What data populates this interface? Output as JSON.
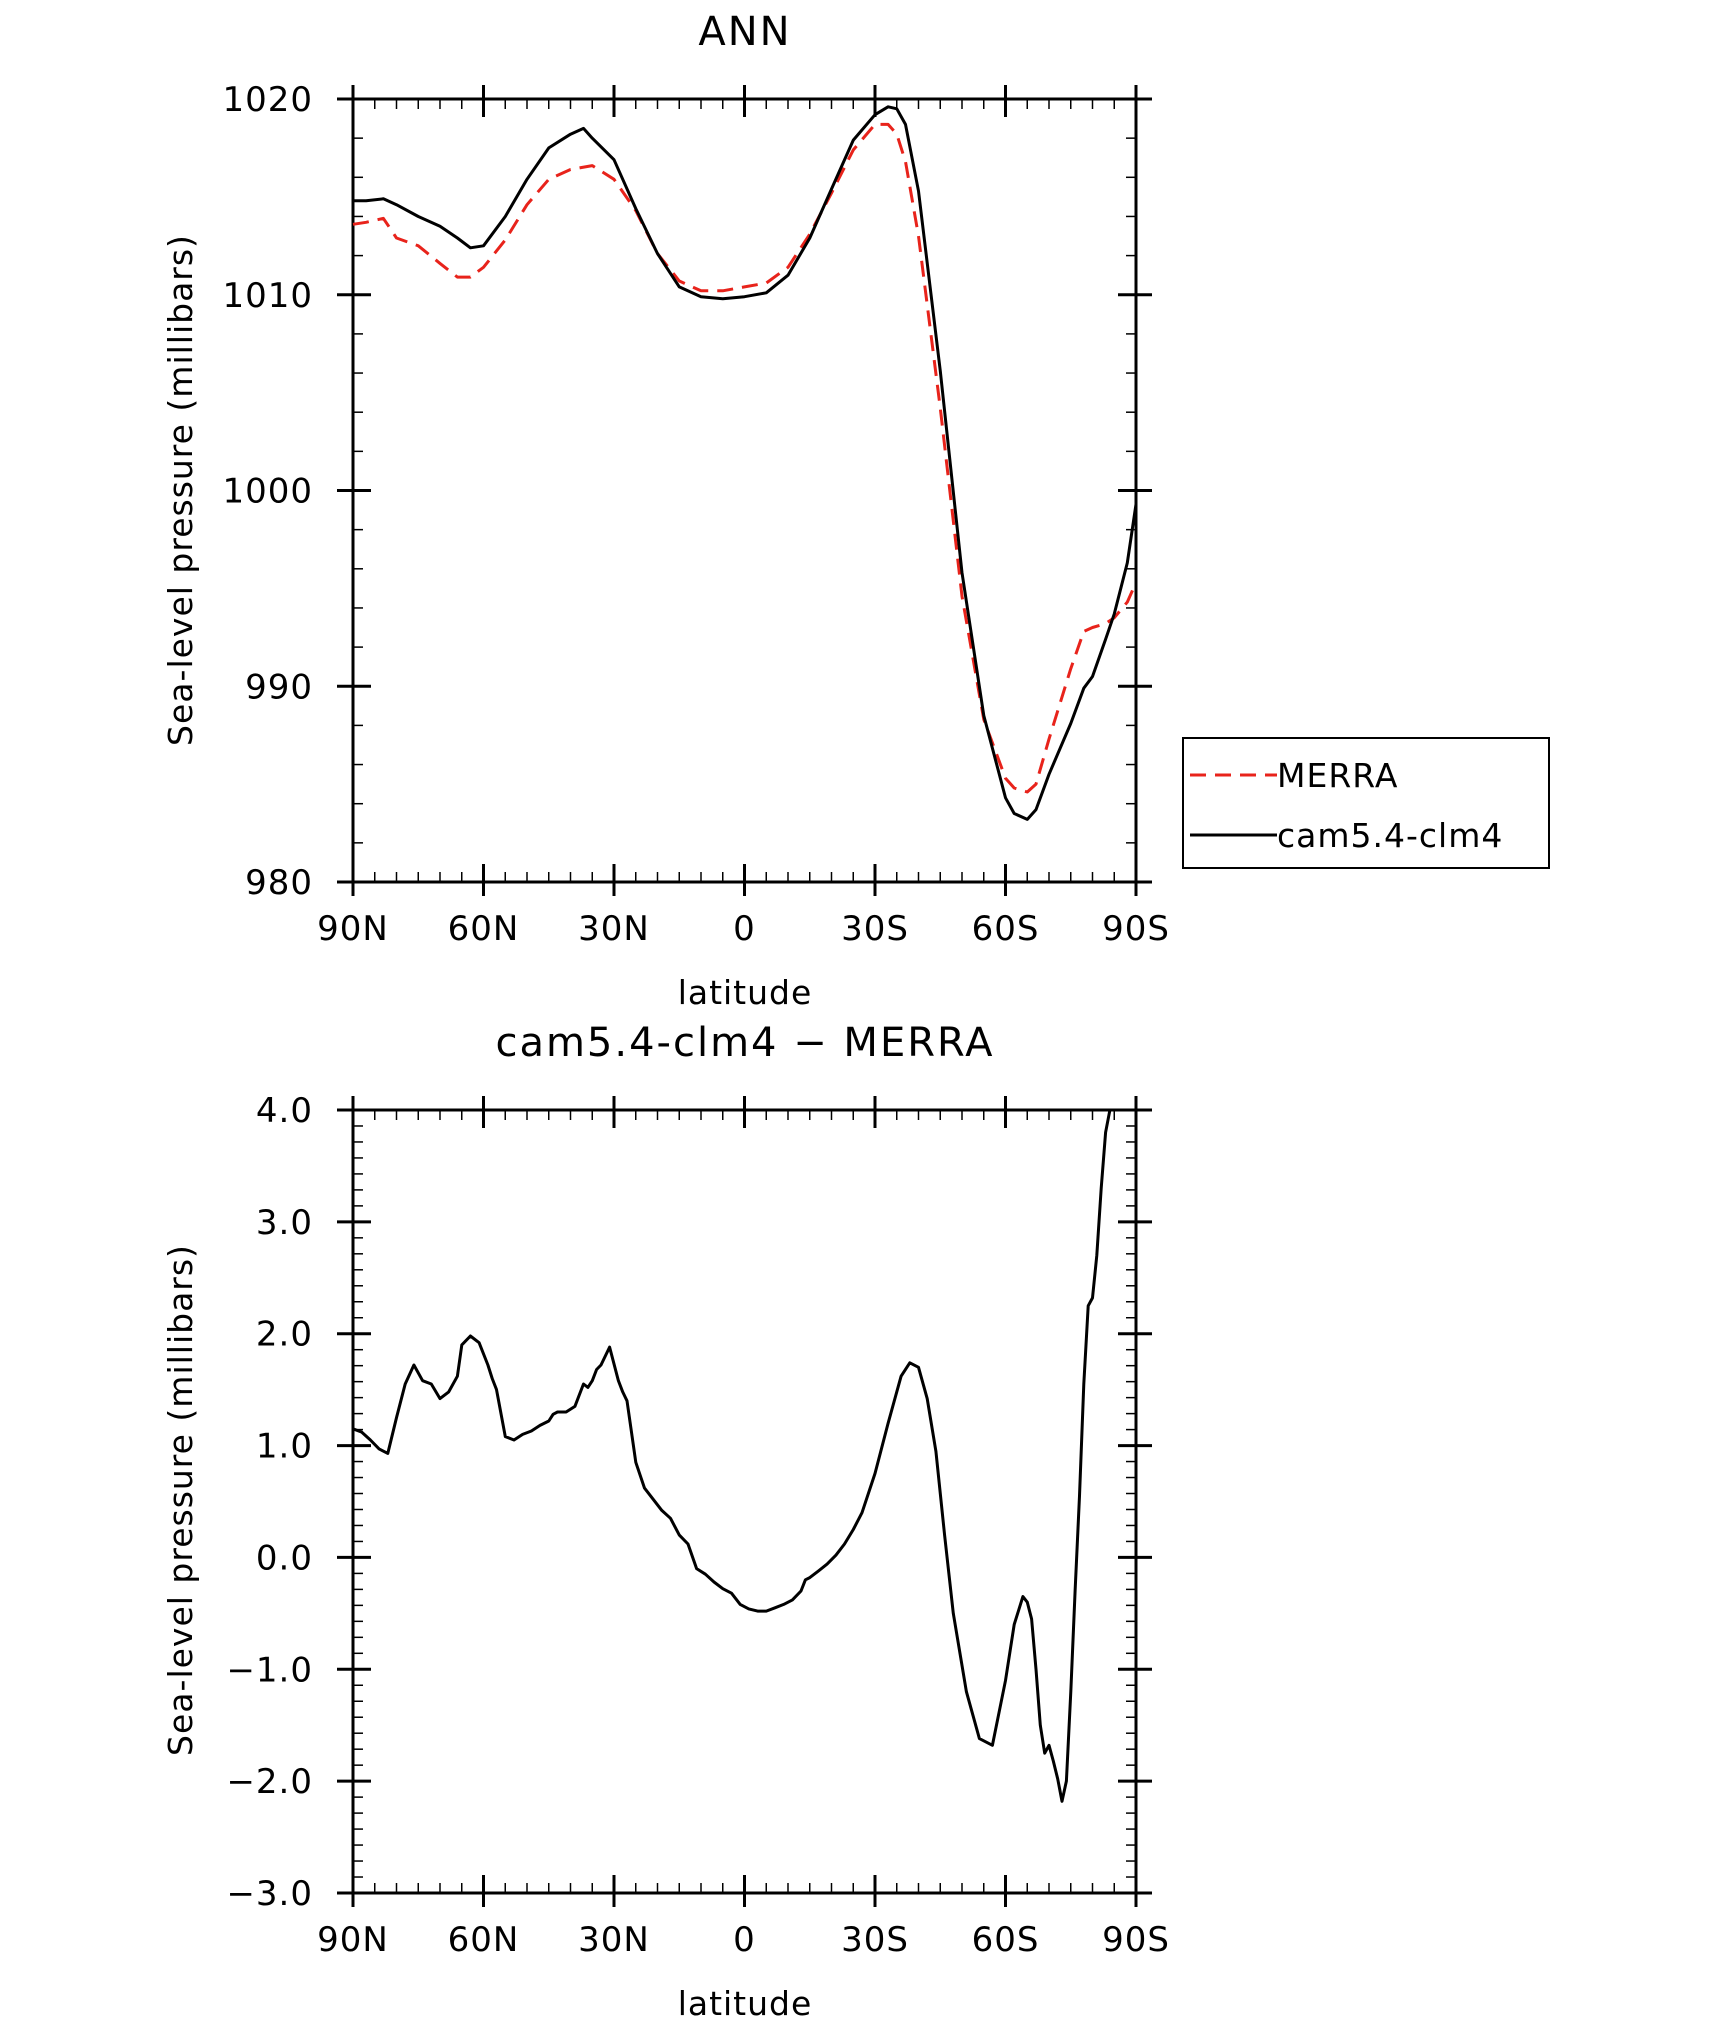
{
  "chart_data": [
    {
      "type": "line",
      "title": "ANN",
      "xlabel": "latitude",
      "ylabel": "Sea-level pressure (millibars)",
      "x_ticks": [
        {
          "value": 90,
          "label": "90N"
        },
        {
          "value": 60,
          "label": "60N"
        },
        {
          "value": 30,
          "label": "30N"
        },
        {
          "value": 0,
          "label": "0"
        },
        {
          "value": -30,
          "label": "30S"
        },
        {
          "value": -60,
          "label": "60S"
        },
        {
          "value": -90,
          "label": "90S"
        }
      ],
      "xlim": [
        90,
        -90
      ],
      "ylim": [
        980,
        1020
      ],
      "y_ticks": [
        {
          "value": 1020,
          "label": "1020"
        },
        {
          "value": 1010,
          "label": "1010"
        },
        {
          "value": 1000,
          "label": "1000"
        },
        {
          "value": 990,
          "label": "990"
        },
        {
          "value": 980,
          "label": "980"
        }
      ],
      "grid": false,
      "legend": {
        "placement": "right",
        "entries": [
          {
            "label": "MERRA",
            "series": "MERRA"
          },
          {
            "label": "cam5.4-clm4",
            "series": "cam5.4-clm4"
          }
        ]
      },
      "series": [
        {
          "name": "MERRA",
          "color": "#e8231b",
          "dash": "dashed",
          "x": [
            90,
            87,
            83,
            80,
            75,
            70,
            66,
            63,
            60,
            55,
            50,
            45,
            40,
            35,
            30,
            25,
            20,
            15,
            10,
            5,
            0,
            -5,
            -10,
            -15,
            -20,
            -25,
            -30,
            -33,
            -35,
            -37,
            -40,
            -45,
            -50,
            -55,
            -60,
            -62,
            -65,
            -67,
            -70,
            -75,
            -78,
            -80,
            -83,
            -85,
            -88,
            -90
          ],
          "y": [
            1013.6,
            1013.7,
            1013.9,
            1012.9,
            1012.5,
            1011.6,
            1010.9,
            1010.9,
            1011.4,
            1012.8,
            1014.6,
            1015.9,
            1016.4,
            1016.6,
            1015.9,
            1014.3,
            1012.1,
            1010.7,
            1010.2,
            1010.2,
            1010.4,
            1010.6,
            1011.4,
            1013.1,
            1015.2,
            1017.4,
            1018.7,
            1018.7,
            1018.2,
            1016.8,
            1013.0,
            1004.2,
            994.6,
            988.3,
            985.3,
            984.8,
            984.6,
            985.0,
            987.3,
            990.9,
            992.8,
            993.0,
            993.2,
            993.5,
            994.3,
            995.3
          ]
        },
        {
          "name": "cam5.4-clm4",
          "color": "#000000",
          "dash": "solid",
          "x": [
            90,
            87,
            83,
            80,
            75,
            70,
            66,
            63,
            60,
            55,
            50,
            45,
            40,
            37,
            35,
            30,
            25,
            20,
            15,
            10,
            5,
            0,
            -5,
            -10,
            -15,
            -20,
            -25,
            -30,
            -33,
            -35,
            -37,
            -40,
            -45,
            -50,
            -55,
            -60,
            -62,
            -65,
            -67,
            -70,
            -75,
            -78,
            -80,
            -83,
            -85,
            -88,
            -90
          ],
          "y": [
            1014.8,
            1014.8,
            1014.9,
            1014.6,
            1014.0,
            1013.5,
            1012.9,
            1012.4,
            1012.5,
            1014.0,
            1015.9,
            1017.5,
            1018.2,
            1018.5,
            1018.0,
            1016.9,
            1014.4,
            1012.1,
            1010.4,
            1009.9,
            1009.8,
            1009.9,
            1010.1,
            1011.0,
            1012.9,
            1015.4,
            1017.9,
            1019.2,
            1019.6,
            1019.5,
            1018.7,
            1015.3,
            1006.1,
            995.8,
            988.5,
            984.3,
            983.5,
            983.2,
            983.7,
            985.5,
            988.1,
            989.9,
            990.5,
            992.4,
            993.7,
            996.3,
            999.3
          ]
        }
      ]
    },
    {
      "type": "line",
      "title": "cam5.4-clm4 − MERRA",
      "xlabel": "latitude",
      "ylabel": "Sea-level pressure (millibars)",
      "x_ticks": [
        {
          "value": 90,
          "label": "90N"
        },
        {
          "value": 60,
          "label": "60N"
        },
        {
          "value": 30,
          "label": "30N"
        },
        {
          "value": 0,
          "label": "0"
        },
        {
          "value": -30,
          "label": "30S"
        },
        {
          "value": -60,
          "label": "60S"
        },
        {
          "value": -90,
          "label": "90S"
        }
      ],
      "xlim": [
        90,
        -90
      ],
      "ylim": [
        -3.0,
        4.0
      ],
      "y_ticks": [
        {
          "value": 4.0,
          "label": "4.0"
        },
        {
          "value": 3.0,
          "label": "3.0"
        },
        {
          "value": 2.0,
          "label": "2.0"
        },
        {
          "value": 1.0,
          "label": "1.0"
        },
        {
          "value": 0.0,
          "label": "0.0"
        },
        {
          "value": -1.0,
          "label": "−1.0"
        },
        {
          "value": -2.0,
          "label": "−2.0"
        },
        {
          "value": -3.0,
          "label": "−3.0"
        }
      ],
      "grid": false,
      "series": [
        {
          "name": "cam5.4-clm4 − MERRA",
          "color": "#000000",
          "dash": "solid",
          "x": [
            90,
            88,
            86,
            84,
            82,
            80,
            78,
            76,
            74,
            72,
            70,
            68,
            66,
            65,
            63,
            61,
            59,
            58,
            57,
            55,
            53,
            51,
            49,
            47,
            45,
            44,
            43,
            41,
            39,
            37,
            36,
            35,
            34,
            33,
            31,
            29,
            28,
            27,
            25,
            23,
            21,
            19,
            17,
            15,
            13,
            11,
            9,
            7,
            5,
            3,
            1,
            -1,
            -3,
            -5,
            -7,
            -9,
            -11,
            -13,
            -14,
            -15,
            -17,
            -19,
            -21,
            -23,
            -25,
            -27,
            -30,
            -33,
            -36,
            -38,
            -40,
            -42,
            -44,
            -46,
            -48,
            -51,
            -54,
            -57,
            -60,
            -62,
            -64,
            -65,
            -66,
            -67,
            -68,
            -69,
            -70,
            -71,
            -72,
            -73,
            -74,
            -75,
            -76,
            -77,
            -78,
            -79,
            -80,
            -81,
            -82,
            -83,
            -84,
            -85,
            -86,
            -87,
            -88,
            -89,
            -90
          ],
          "y": [
            1.15,
            1.12,
            1.05,
            0.97,
            0.93,
            1.25,
            1.55,
            1.72,
            1.58,
            1.55,
            1.42,
            1.48,
            1.62,
            1.9,
            1.98,
            1.92,
            1.72,
            1.6,
            1.5,
            1.08,
            1.05,
            1.1,
            1.13,
            1.18,
            1.22,
            1.28,
            1.3,
            1.3,
            1.35,
            1.55,
            1.52,
            1.58,
            1.68,
            1.72,
            1.88,
            1.58,
            1.48,
            1.4,
            0.85,
            0.62,
            0.52,
            0.42,
            0.35,
            0.2,
            0.12,
            -0.1,
            -0.15,
            -0.22,
            -0.28,
            -0.32,
            -0.42,
            -0.46,
            -0.48,
            -0.48,
            -0.45,
            -0.42,
            -0.38,
            -0.3,
            -0.2,
            -0.18,
            -0.12,
            -0.06,
            0.02,
            0.12,
            0.25,
            0.4,
            0.75,
            1.2,
            1.62,
            1.74,
            1.7,
            1.42,
            0.95,
            0.2,
            -0.5,
            -1.2,
            -1.62,
            -1.68,
            -1.1,
            -0.6,
            -0.35,
            -0.4,
            -0.55,
            -1.0,
            -1.5,
            -1.75,
            -1.68,
            -1.82,
            -1.98,
            -2.18,
            -2.0,
            -1.2,
            -0.3,
            0.55,
            1.55,
            2.25,
            2.32,
            2.7,
            3.3,
            3.8,
            4.0,
            4.0,
            4.0,
            4.0,
            4.0,
            4.0,
            4.0
          ]
        }
      ]
    }
  ]
}
